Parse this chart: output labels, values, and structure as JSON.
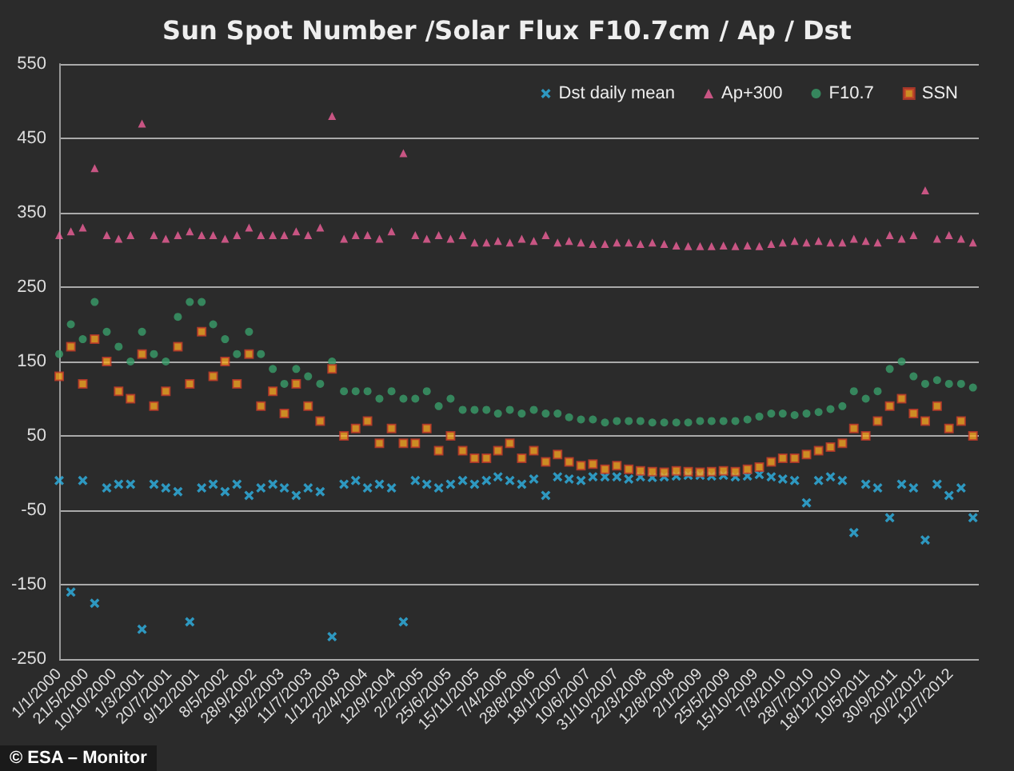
{
  "chart_data": {
    "type": "scatter",
    "title": "Sun Spot Number /Solar Flux F10.7cm / Ap / Dst",
    "x": [
      "2000-01",
      "2000-03",
      "2000-05",
      "2000-07",
      "2000-09",
      "2000-11",
      "2001-01",
      "2001-03",
      "2001-05",
      "2001-07",
      "2001-09",
      "2001-11",
      "2002-01",
      "2002-03",
      "2002-05",
      "2002-07",
      "2002-09",
      "2002-11",
      "2003-01",
      "2003-03",
      "2003-05",
      "2003-07",
      "2003-09",
      "2003-11",
      "2004-01",
      "2004-03",
      "2004-05",
      "2004-07",
      "2004-09",
      "2004-11",
      "2005-01",
      "2005-03",
      "2005-05",
      "2005-07",
      "2005-09",
      "2005-11",
      "2006-01",
      "2006-03",
      "2006-05",
      "2006-07",
      "2006-09",
      "2006-11",
      "2007-01",
      "2007-03",
      "2007-05",
      "2007-07",
      "2007-09",
      "2007-11",
      "2008-01",
      "2008-03",
      "2008-05",
      "2008-07",
      "2008-09",
      "2008-11",
      "2009-01",
      "2009-03",
      "2009-05",
      "2009-07",
      "2009-09",
      "2009-11",
      "2010-01",
      "2010-03",
      "2010-05",
      "2010-07",
      "2010-09",
      "2010-11",
      "2011-01",
      "2011-03",
      "2011-05",
      "2011-07",
      "2011-09",
      "2011-11",
      "2012-01",
      "2012-03",
      "2012-05",
      "2012-07",
      "2012-09",
      "2012-11"
    ],
    "series": [
      {
        "name": "Dst daily mean",
        "color": "#2fb4e6",
        "marker": "cross",
        "values": [
          -10,
          -160,
          -10,
          -175,
          -20,
          -15,
          -15,
          -210,
          -15,
          -20,
          -25,
          -200,
          -20,
          -15,
          -25,
          -15,
          -30,
          -20,
          -15,
          -20,
          -30,
          -20,
          -25,
          -220,
          -15,
          -10,
          -20,
          -15,
          -20,
          -200,
          -10,
          -15,
          -20,
          -15,
          -10,
          -15,
          -10,
          -5,
          -10,
          -15,
          -8,
          -30,
          -5,
          -8,
          -10,
          -5,
          -5,
          -5,
          -8,
          -5,
          -6,
          -5,
          -4,
          -3,
          -3,
          -4,
          -3,
          -5,
          -4,
          -2,
          -5,
          -8,
          -10,
          -40,
          -10,
          -5,
          -10,
          -80,
          -15,
          -20,
          -60,
          -15,
          -20,
          -90,
          -15,
          -30,
          -20,
          -60
        ]
      },
      {
        "name": "Ap+300",
        "color": "#f0609a",
        "marker": "triangle",
        "values": [
          320,
          325,
          330,
          410,
          320,
          315,
          320,
          470,
          320,
          315,
          320,
          325,
          320,
          320,
          315,
          320,
          330,
          320,
          320,
          320,
          325,
          320,
          330,
          480,
          315,
          320,
          320,
          315,
          325,
          430,
          320,
          315,
          320,
          315,
          320,
          310,
          310,
          312,
          310,
          315,
          312,
          320,
          310,
          312,
          310,
          308,
          308,
          310,
          310,
          308,
          310,
          308,
          306,
          305,
          305,
          305,
          306,
          305,
          306,
          305,
          308,
          310,
          312,
          310,
          312,
          310,
          310,
          315,
          312,
          310,
          320,
          315,
          320,
          380,
          315,
          320,
          315,
          310
        ]
      },
      {
        "name": "F10.7",
        "color": "#3a9e6a",
        "marker": "circle",
        "values": [
          160,
          200,
          180,
          230,
          190,
          170,
          150,
          190,
          160,
          150,
          210,
          230,
          230,
          200,
          180,
          160,
          190,
          160,
          140,
          120,
          140,
          130,
          120,
          150,
          110,
          110,
          110,
          100,
          110,
          100,
          100,
          110,
          90,
          100,
          85,
          85,
          85,
          80,
          85,
          80,
          85,
          80,
          80,
          75,
          72,
          72,
          68,
          70,
          70,
          70,
          68,
          68,
          68,
          68,
          70,
          70,
          70,
          70,
          72,
          76,
          80,
          80,
          78,
          80,
          82,
          86,
          90,
          110,
          100,
          110,
          140,
          150,
          130,
          120,
          125,
          120,
          120,
          115
        ]
      },
      {
        "name": "SSN",
        "color": "#f5a623",
        "marker": "square",
        "values": [
          130,
          170,
          120,
          180,
          150,
          110,
          100,
          160,
          90,
          110,
          170,
          120,
          190,
          130,
          150,
          120,
          160,
          90,
          110,
          80,
          120,
          90,
          70,
          140,
          50,
          60,
          70,
          40,
          60,
          40,
          40,
          60,
          30,
          50,
          30,
          20,
          20,
          30,
          40,
          20,
          30,
          15,
          25,
          15,
          10,
          12,
          5,
          10,
          5,
          3,
          2,
          1,
          3,
          2,
          1,
          2,
          3,
          2,
          5,
          8,
          15,
          20,
          20,
          25,
          30,
          35,
          40,
          60,
          50,
          70,
          90,
          100,
          80,
          70,
          90,
          60,
          70,
          50
        ]
      }
    ],
    "xlim": [
      "2000-01-01",
      "2012-12-01"
    ],
    "xticks": [
      {
        "value": "2000-01-01",
        "label": "1/1/2000"
      },
      {
        "value": "2000-05-21",
        "label": "21/5/2000"
      },
      {
        "value": "2000-10-10",
        "label": "10/10/2000"
      },
      {
        "value": "2001-03-01",
        "label": "1/3/2001"
      },
      {
        "value": "2001-07-20",
        "label": "20/7/2001"
      },
      {
        "value": "2001-12-09",
        "label": "9/12/2001"
      },
      {
        "value": "2002-05-08",
        "label": "8/5/2002"
      },
      {
        "value": "2002-09-28",
        "label": "28/9/2002"
      },
      {
        "value": "2003-02-18",
        "label": "18/2/2003"
      },
      {
        "value": "2003-07-11",
        "label": "11/7/2003"
      },
      {
        "value": "2003-12-01",
        "label": "1/12/2003"
      },
      {
        "value": "2004-04-22",
        "label": "22/4/2004"
      },
      {
        "value": "2004-09-12",
        "label": "12/9/2004"
      },
      {
        "value": "2005-02-02",
        "label": "2/2/2005"
      },
      {
        "value": "2005-06-25",
        "label": "25/6/2005"
      },
      {
        "value": "2005-11-15",
        "label": "15/11/2005"
      },
      {
        "value": "2006-04-07",
        "label": "7/4/2006"
      },
      {
        "value": "2006-08-28",
        "label": "28/8/2006"
      },
      {
        "value": "2007-01-18",
        "label": "18/1/2007"
      },
      {
        "value": "2007-06-10",
        "label": "10/6/2007"
      },
      {
        "value": "2007-10-31",
        "label": "31/10/2007"
      },
      {
        "value": "2008-03-22",
        "label": "22/3/2008"
      },
      {
        "value": "2008-08-12",
        "label": "12/8/2008"
      },
      {
        "value": "2009-01-02",
        "label": "2/1/2009"
      },
      {
        "value": "2009-05-25",
        "label": "25/5/2009"
      },
      {
        "value": "2009-10-15",
        "label": "15/10/2009"
      },
      {
        "value": "2010-03-07",
        "label": "7/3/2010"
      },
      {
        "value": "2010-07-28",
        "label": "28/7/2010"
      },
      {
        "value": "2010-12-18",
        "label": "18/12/2010"
      },
      {
        "value": "2011-05-10",
        "label": "10/5/2011"
      },
      {
        "value": "2011-09-30",
        "label": "30/9/2011"
      },
      {
        "value": "2012-02-20",
        "label": "20/2/2012"
      },
      {
        "value": "2012-07-12",
        "label": "12/7/2012"
      }
    ],
    "ylim": [
      -250,
      550
    ],
    "yticks": [
      -250,
      -150,
      -50,
      50,
      150,
      250,
      350,
      450,
      550
    ],
    "grid": "y",
    "legend": "top right",
    "annotations": [
      "© ESA – Monitor"
    ]
  }
}
